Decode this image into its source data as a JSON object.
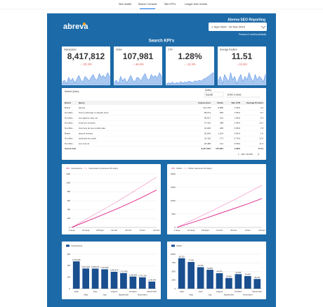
{
  "tabs": [
    "Site health",
    "Search Console",
    "Site KPI's",
    "Longer term trends"
  ],
  "header": {
    "logo": "abreva",
    "title": "Abreva SEO Reporting",
    "date_range": "1 Sept 2024 - 30 Nov 2024",
    "comparison": "Previous 3 months (default)",
    "section": "Search KPI's"
  },
  "kpis": [
    {
      "label": "Impressions",
      "value": "8,417,812",
      "change": "↓ -25.3%",
      "trend": [
        40,
        42,
        38,
        45,
        41,
        44,
        39,
        43,
        47,
        42,
        40,
        46,
        44,
        41,
        45,
        48,
        43,
        42,
        49,
        45,
        47,
        44,
        50,
        46
      ]
    },
    {
      "label": "Clicks",
      "value": "107,981",
      "change": "↓ -34.9%",
      "trend": [
        38,
        40,
        36,
        44,
        39,
        42,
        37,
        41,
        45,
        40,
        38,
        43,
        42,
        39,
        44,
        47,
        41,
        40,
        46,
        43,
        45,
        42,
        48,
        44
      ]
    },
    {
      "label": "CTR",
      "value": "1.28%",
      "change": "↓ -12.9%",
      "trend": [
        30,
        32,
        31,
        34,
        30,
        33,
        31,
        35,
        32,
        34,
        33,
        36,
        34,
        33,
        37,
        35,
        38,
        36,
        40,
        42,
        45,
        48,
        52,
        55
      ]
    },
    {
      "label": "Average Position",
      "value": "11.51",
      "change": "↓ 10.3%",
      "trend": [
        44,
        46,
        42,
        47,
        45,
        43,
        48,
        44,
        46,
        42,
        45,
        47,
        43,
        46,
        44,
        48,
        45,
        43,
        47,
        44,
        46,
        45,
        43,
        47
      ]
    }
  ],
  "table": {
    "title": "Search Query",
    "filter_label": "Query",
    "filter_op": "Equals",
    "filter_placeholder": "Enter a value",
    "columns": [
      "Brand",
      "Query",
      "Impressions",
      "Clicks",
      "Site CTR",
      "Average Position"
    ],
    "rows": [
      [
        "Brand",
        "abreva",
        "121,728",
        "8,880",
        "7.29%",
        "3.2"
      ],
      [
        "Non-Bra...",
        "how to add tags to shopify store",
        "58,974",
        "905",
        "1.53%",
        "8.7"
      ],
      [
        "Non-Bra...",
        "seo agency near me",
        "48,917",
        "512",
        "1.05%",
        "9.4"
      ],
      [
        "Non-Bra...",
        "local seo services",
        "37,412",
        "388",
        "1.04%",
        "10.2"
      ],
      [
        "Non-Bra...",
        "how long do seo results take",
        "31,006",
        "296",
        "0.95%",
        "7.8"
      ],
      [
        "Brand",
        "abreva reviews",
        "26,540",
        "1,204",
        "4.54%",
        "1.9"
      ],
      [
        "Non-Bra...",
        "technical seo audit",
        "24,115",
        "173",
        "0.72%",
        "12.6"
      ],
      [
        "Non-Bra...",
        "seo cost uk",
        "20,388",
        "141",
        "0.69%",
        "11.3"
      ]
    ],
    "total": [
      "Grand total",
      "8,417,812",
      "107,981",
      "1.28%",
      "11.51"
    ],
    "pagination": "1 - 100 / 36,000"
  },
  "chart_data": [
    {
      "type": "line",
      "categories": [
        "1 Sept",
        "14 Sept",
        "28 Sept",
        "12 Oct",
        "26 Oct",
        "9 Nov",
        "23 Nov"
      ],
      "series": [
        {
          "name": "Impressions",
          "color": "#e0338f",
          "values": [
            0,
            1300000,
            2600000,
            3900000,
            5300000,
            6800000,
            8400000
          ]
        },
        {
          "name": "Impressions (previous 91 days)",
          "color": "#f4a6cf",
          "values": [
            0,
            1800000,
            3600000,
            5400000,
            7300000,
            9300000,
            11300000
          ]
        }
      ],
      "ylim": [
        0,
        12000000
      ],
      "yticks": [
        0,
        {
          "value": 2000000,
          "label": "2M"
        },
        {
          "value": 4000000,
          "label": "4M"
        },
        {
          "value": 6000000,
          "label": "6M"
        },
        {
          "value": 8000000,
          "label": "8M"
        },
        {
          "value": 10000000,
          "label": "10M"
        },
        {
          "value": 12000000,
          "label": "12M"
        }
      ],
      "grid": true,
      "legend": "top"
    },
    {
      "type": "line",
      "categories": [
        "1 Sept",
        "14 Sept",
        "28 Sept",
        "12 Oct",
        "26 Oct",
        "9 Nov",
        "23 Nov"
      ],
      "series": [
        {
          "name": "Clicks",
          "color": "#e0338f",
          "values": [
            0,
            17000,
            34000,
            52000,
            70000,
            88000,
            108000
          ]
        },
        {
          "name": "Clicks (previous 91 days)",
          "color": "#f4a6cf",
          "values": [
            0,
            25000,
            50000,
            76000,
            102000,
            130000,
            158000
          ]
        }
      ],
      "ylim": [
        0,
        200000
      ],
      "yticks": [
        0,
        {
          "value": 50000,
          "label": "50K"
        },
        {
          "value": 100000,
          "label": "100K"
        },
        {
          "value": 150000,
          "label": "150K"
        },
        {
          "value": 200000,
          "label": "200K"
        }
      ],
      "grid": true,
      "legend": "top"
    },
    {
      "type": "bar",
      "categories": [
        "April",
        "May",
        "June",
        "July",
        "August",
        "September",
        "October",
        "November",
        "December"
      ],
      "series": [
        {
          "name": "Impressions",
          "color": "#1a4f8f",
          "values": [
            4753908,
            3512340,
            3498120,
            3376540,
            2942870,
            2713450,
            2108960,
            1972330,
            1240540
          ],
          "value_labels": [
            "4,753,908",
            "3,512,340",
            "3,498,120",
            "3,376,540",
            "2,942,870",
            "2,713,450",
            "2,108,960",
            "1,972,330",
            "1,240,540"
          ]
        }
      ],
      "ylim": [
        0,
        6000000
      ],
      "yticks": [
        0,
        {
          "value": 2000000,
          "label": "2M"
        },
        {
          "value": 4000000,
          "label": "4M"
        },
        {
          "value": 6000000,
          "label": "6M"
        }
      ],
      "grid": true,
      "legend": "top"
    },
    {
      "type": "bar",
      "categories": [
        "April",
        "May",
        "June",
        "July",
        "August",
        "September",
        "October",
        "November",
        "December"
      ],
      "series": [
        {
          "name": "Clicks",
          "color": "#1a4f8f",
          "values": [
            88120,
            77430,
            62350,
            54890,
            44870,
            30960,
            42180,
            36640,
            28130
          ],
          "value_labels": [
            "88,120",
            "77,430",
            "62,350",
            "54,890",
            "44,870",
            "30,960",
            "42,180",
            "36,640",
            "28,130"
          ]
        }
      ],
      "ylim": [
        0,
        100000
      ],
      "yticks": [
        0,
        {
          "value": 25000,
          "label": "25K"
        },
        {
          "value": 50000,
          "label": "50K"
        },
        {
          "value": 75000,
          "label": "75K"
        },
        {
          "value": 100000,
          "label": "100K"
        }
      ],
      "grid": true,
      "legend": "top"
    }
  ]
}
